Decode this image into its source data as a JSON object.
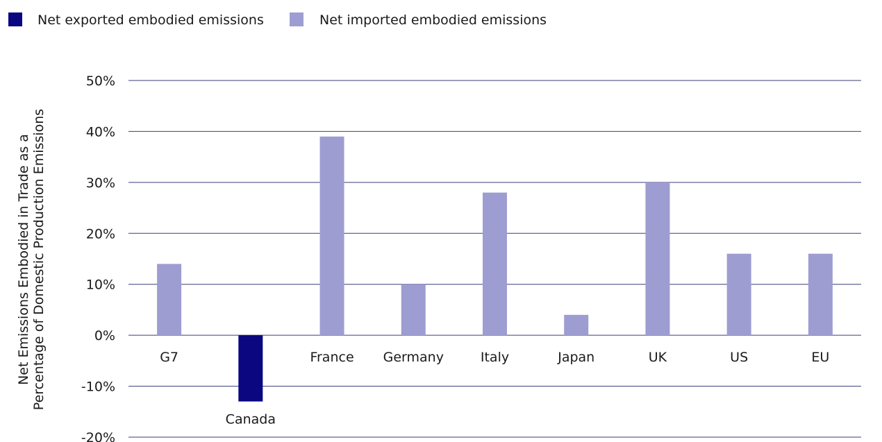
{
  "chart_data": {
    "type": "bar",
    "categories": [
      "G7",
      "Canada",
      "France",
      "Germany",
      "Italy",
      "Japan",
      "UK",
      "US",
      "EU"
    ],
    "values": [
      14,
      -13,
      39,
      10,
      28,
      4,
      30,
      16,
      16
    ],
    "value_unit": "%",
    "ylabel_lines": [
      "Net Emissions Embodied in Trade as a",
      "Percentage of Domestic Production Emissions"
    ],
    "ylim": [
      -20,
      50
    ],
    "yticks": [
      -20,
      -10,
      0,
      10,
      20,
      30,
      40,
      50
    ],
    "ytick_labels": [
      "-20%",
      "-10%",
      "0%",
      "10%",
      "20%",
      "30%",
      "40%",
      "50%"
    ],
    "grid": true,
    "legend_position": "top-left",
    "legend": [
      {
        "key": "exported",
        "label": "Net exported embodied emissions",
        "color": "#0b0780"
      },
      {
        "key": "imported",
        "label": "Net imported embodied emissions",
        "color": "#9e9dd1"
      }
    ],
    "colors": {
      "negative": "#0b0780",
      "positive": "#9e9dd1",
      "grid": "#3a3a7a"
    }
  }
}
